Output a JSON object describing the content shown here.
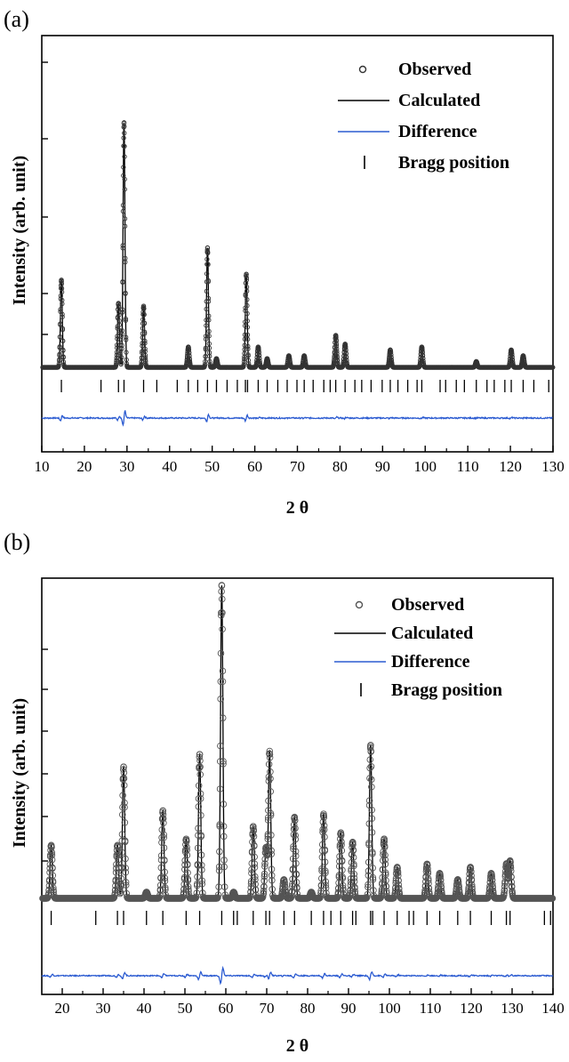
{
  "chart_data": [
    {
      "panel": "(a)",
      "type": "line",
      "xlabel": "2 θ",
      "ylabel": "Intensity (arb. unit)",
      "xlim": [
        10,
        130
      ],
      "xticks": [
        10,
        20,
        30,
        40,
        50,
        60,
        70,
        80,
        90,
        100,
        110,
        120,
        130
      ],
      "yticks_labeled": false,
      "legend": {
        "placement": "top-right",
        "entries": [
          "Observed",
          "Calculated",
          "Difference",
          "Bragg position"
        ]
      },
      "colors": {
        "observed": "#333333",
        "calculated": "#000000",
        "difference": "#2b5bd1",
        "bragg": "#000000"
      },
      "peaks": [
        {
          "x": 14.6,
          "height": 0.3
        },
        {
          "x": 28.0,
          "height": 0.22
        },
        {
          "x": 29.3,
          "height": 0.84
        },
        {
          "x": 33.9,
          "height": 0.21
        },
        {
          "x": 44.4,
          "height": 0.07
        },
        {
          "x": 48.9,
          "height": 0.41
        },
        {
          "x": 51.0,
          "height": 0.03
        },
        {
          "x": 58.0,
          "height": 0.32
        },
        {
          "x": 60.8,
          "height": 0.07
        },
        {
          "x": 62.9,
          "height": 0.03
        },
        {
          "x": 68.0,
          "height": 0.04
        },
        {
          "x": 71.6,
          "height": 0.04
        },
        {
          "x": 79.0,
          "height": 0.11
        },
        {
          "x": 81.2,
          "height": 0.08
        },
        {
          "x": 91.8,
          "height": 0.06
        },
        {
          "x": 99.2,
          "height": 0.07
        },
        {
          "x": 112.0,
          "height": 0.02
        },
        {
          "x": 120.2,
          "height": 0.06
        },
        {
          "x": 123.0,
          "height": 0.04
        }
      ],
      "bragg_positions": [
        14.6,
        23.9,
        28.0,
        29.3,
        33.9,
        37.0,
        41.8,
        44.4,
        46.6,
        48.9,
        51.0,
        53.5,
        55.9,
        57.8,
        58.3,
        60.8,
        62.9,
        65.4,
        67.6,
        69.9,
        71.6,
        73.7,
        76.2,
        77.7,
        79.0,
        81.2,
        83.5,
        85.1,
        87.3,
        89.9,
        91.8,
        93.6,
        95.9,
        98.1,
        99.2,
        103.5,
        104.8,
        107.3,
        109.2,
        112.0,
        114.5,
        116.2,
        118.7,
        120.2,
        123.0,
        125.5,
        129.0
      ]
    },
    {
      "panel": "(b)",
      "type": "line",
      "xlabel": "2 θ",
      "ylabel": "Intensity (arb. unit)",
      "xlim": [
        15,
        140
      ],
      "xticks": [
        20,
        30,
        40,
        50,
        60,
        70,
        80,
        90,
        100,
        110,
        120,
        130,
        140
      ],
      "yticks_labeled": false,
      "legend": {
        "placement": "top-right",
        "entries": [
          "Observed",
          "Calculated",
          "Difference",
          "Bragg position"
        ]
      },
      "colors": {
        "observed": "#555555",
        "calculated": "#000000",
        "difference": "#2b5bd1",
        "bragg": "#000000"
      },
      "peaks": [
        {
          "x": 17.3,
          "height": 0.17
        },
        {
          "x": 33.5,
          "height": 0.17
        },
        {
          "x": 35.0,
          "height": 0.42
        },
        {
          "x": 40.6,
          "height": 0.02
        },
        {
          "x": 44.6,
          "height": 0.28
        },
        {
          "x": 50.3,
          "height": 0.19
        },
        {
          "x": 53.6,
          "height": 0.46
        },
        {
          "x": 59.0,
          "height": 1.0
        },
        {
          "x": 61.9,
          "height": 0.02
        },
        {
          "x": 66.7,
          "height": 0.23
        },
        {
          "x": 69.8,
          "height": 0.16
        },
        {
          "x": 70.7,
          "height": 0.47
        },
        {
          "x": 74.2,
          "height": 0.06
        },
        {
          "x": 76.8,
          "height": 0.26
        },
        {
          "x": 80.9,
          "height": 0.02
        },
        {
          "x": 83.9,
          "height": 0.27
        },
        {
          "x": 88.1,
          "height": 0.21
        },
        {
          "x": 91.0,
          "height": 0.18
        },
        {
          "x": 95.4,
          "height": 0.49
        },
        {
          "x": 98.7,
          "height": 0.19
        },
        {
          "x": 101.9,
          "height": 0.1
        },
        {
          "x": 109.2,
          "height": 0.11
        },
        {
          "x": 112.3,
          "height": 0.08
        },
        {
          "x": 116.7,
          "height": 0.06
        },
        {
          "x": 119.8,
          "height": 0.1
        },
        {
          "x": 124.9,
          "height": 0.08
        },
        {
          "x": 128.6,
          "height": 0.11
        },
        {
          "x": 129.5,
          "height": 0.12
        }
      ],
      "bragg_positions": [
        17.3,
        28.2,
        33.5,
        35.0,
        40.6,
        44.6,
        50.3,
        53.6,
        59.0,
        61.9,
        62.8,
        66.7,
        69.8,
        70.7,
        74.2,
        76.8,
        80.9,
        83.9,
        85.7,
        88.1,
        91.0,
        91.8,
        95.4,
        95.9,
        98.7,
        101.9,
        104.8,
        105.9,
        109.2,
        112.3,
        116.7,
        119.8,
        124.9,
        128.6,
        129.5,
        137.9,
        139.4
      ]
    }
  ],
  "figure": {
    "panel_a_label": "(a)",
    "panel_b_label": "(b)"
  }
}
